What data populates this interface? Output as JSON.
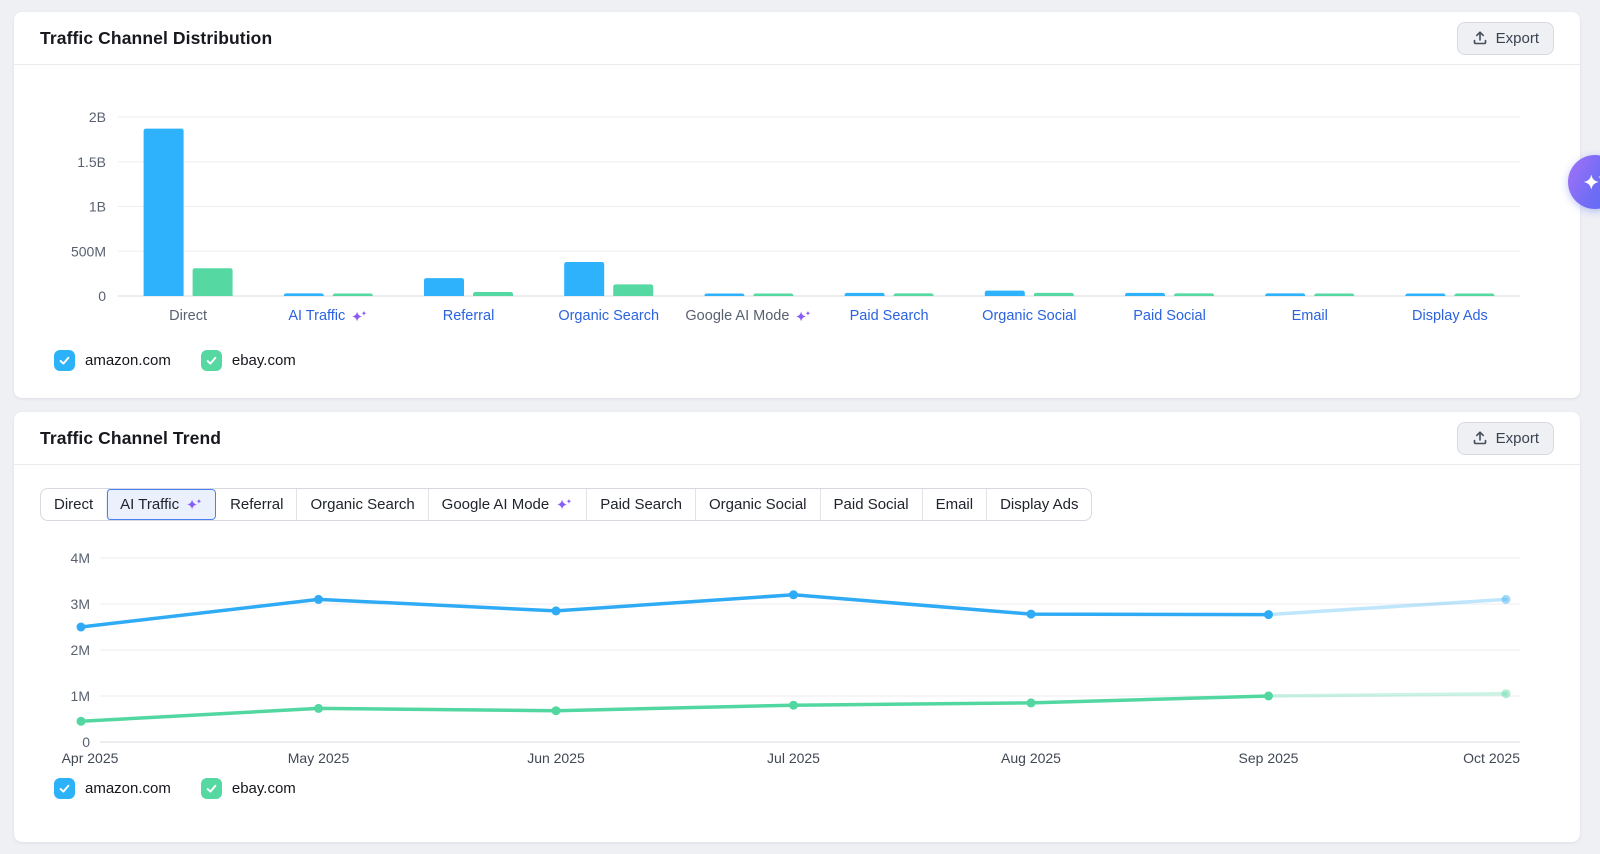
{
  "page": {
    "background": "#eef0f4"
  },
  "colors": {
    "link_label": "#2b63e0",
    "muted_label": "#596170",
    "sparkle": "#8a5cf6",
    "amazon": "#2eb2fc",
    "ebay": "#55d8a1",
    "gridline": "#edeef2",
    "baseline": "#d8dbe1",
    "tick_label": "#596170",
    "month_label": "#414855"
  },
  "distribution_card": {
    "title": "Traffic Channel Distribution",
    "export_label": "Export",
    "legend": [
      {
        "label": "amazon.com",
        "color": "#2bb2f8",
        "checked": true
      },
      {
        "label": "ebay.com",
        "color": "#55d8a1",
        "checked": true
      }
    ]
  },
  "trend_card": {
    "title": "Traffic Channel Trend",
    "export_label": "Export",
    "tabs": [
      {
        "label": "Direct"
      },
      {
        "label": "AI Traffic",
        "sparkle": true,
        "selected": true
      },
      {
        "label": "Referral"
      },
      {
        "label": "Organic Search"
      },
      {
        "label": "Google AI Mode",
        "sparkle": true
      },
      {
        "label": "Paid Search"
      },
      {
        "label": "Organic Social"
      },
      {
        "label": "Paid Social"
      },
      {
        "label": "Email"
      },
      {
        "label": "Display Ads"
      }
    ],
    "legend": [
      {
        "label": "amazon.com",
        "color": "#2bb2f8",
        "checked": true
      },
      {
        "label": "ebay.com",
        "color": "#55d8a1",
        "checked": true
      }
    ]
  },
  "ai_assistant_button": {
    "gradient_start": "#a472f7",
    "gradient_end": "#5a6df5"
  },
  "chart_data": [
    {
      "type": "bar",
      "title": "Traffic Channel Distribution",
      "categories": [
        {
          "label": "Direct",
          "style": "muted"
        },
        {
          "label": "AI Traffic",
          "style": "link",
          "sparkle": true
        },
        {
          "label": "Referral",
          "style": "link"
        },
        {
          "label": "Organic Search",
          "style": "link"
        },
        {
          "label": "Google AI Mode",
          "style": "muted",
          "sparkle": true
        },
        {
          "label": "Paid Search",
          "style": "link"
        },
        {
          "label": "Organic Social",
          "style": "link"
        },
        {
          "label": "Paid Social",
          "style": "link"
        },
        {
          "label": "Email",
          "style": "link"
        },
        {
          "label": "Display Ads",
          "style": "link"
        }
      ],
      "series": [
        {
          "name": "amazon.com",
          "color": "#2eb2fc",
          "values_millions": [
            1870,
            30,
            200,
            380,
            25,
            35,
            60,
            35,
            30,
            25
          ]
        },
        {
          "name": "ebay.com",
          "color": "#55d8a1",
          "values_millions": [
            310,
            25,
            45,
            130,
            25,
            30,
            35,
            30,
            25,
            25
          ]
        }
      ],
      "y_ticks": [
        "2B",
        "1.5B",
        "1B",
        "500M",
        "0"
      ],
      "y_max_millions": 2000,
      "grid": true,
      "legend_position": "bottom"
    },
    {
      "type": "line",
      "title": "Traffic Channel Trend",
      "selected_channel": "AI Traffic",
      "x": [
        "Apr 2025",
        "May 2025",
        "Jun 2025",
        "Jul 2025",
        "Aug 2025",
        "Sep 2025",
        "Oct 2025"
      ],
      "series": [
        {
          "name": "amazon.com",
          "color": "#2fabf5",
          "values_millions": [
            2.5,
            3.1,
            2.85,
            3.2,
            2.78,
            2.77,
            3.1
          ],
          "forecast_start_index": 5
        },
        {
          "name": "ebay.com",
          "color": "#53d7a1",
          "values_millions": [
            0.45,
            0.73,
            0.68,
            0.8,
            0.85,
            1.0,
            1.05
          ],
          "forecast_start_index": 5
        }
      ],
      "y_ticks": [
        "4M",
        "3M",
        "2M",
        "1M",
        "0"
      ],
      "y_max_millions": 4,
      "grid": true,
      "legend_position": "bottom"
    }
  ]
}
